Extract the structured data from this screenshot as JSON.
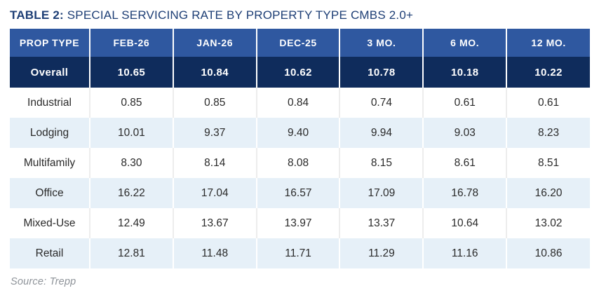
{
  "title": {
    "prefix": "TABLE 2:",
    "rest": " SPECIAL SERVICING RATE BY PROPERTY TYPE CMBS 2.0+"
  },
  "colors": {
    "title_text": "#1D3E75",
    "header_bg": "#2F58A0",
    "overall_bg": "#0F2C5C",
    "stripe_bg": "#E6F0F8",
    "source_text": "#8E9399"
  },
  "chart_data": {
    "type": "table",
    "title": "TABLE 2: SPECIAL SERVICING RATE BY PROPERTY TYPE CMBS 2.0+",
    "columns": [
      "PROP TYPE",
      "FEB-26",
      "JAN-26",
      "DEC-25",
      "3 MO.",
      "6 MO.",
      "12 MO."
    ],
    "overall": {
      "label": "Overall",
      "values": [
        "10.65",
        "10.84",
        "10.62",
        "10.78",
        "10.18",
        "10.22"
      ]
    },
    "rows": [
      {
        "label": "Industrial",
        "values": [
          "0.85",
          "0.85",
          "0.84",
          "0.74",
          "0.61",
          "0.61"
        ]
      },
      {
        "label": "Lodging",
        "values": [
          "10.01",
          "9.37",
          "9.40",
          "9.94",
          "9.03",
          "8.23"
        ]
      },
      {
        "label": "Multifamily",
        "values": [
          "8.30",
          "8.14",
          "8.08",
          "8.15",
          "8.61",
          "8.51"
        ]
      },
      {
        "label": "Office",
        "values": [
          "16.22",
          "17.04",
          "16.57",
          "17.09",
          "16.78",
          "16.20"
        ]
      },
      {
        "label": "Mixed-Use",
        "values": [
          "12.49",
          "13.67",
          "13.97",
          "13.37",
          "10.64",
          "13.02"
        ]
      },
      {
        "label": "Retail",
        "values": [
          "12.81",
          "11.48",
          "11.71",
          "11.29",
          "11.16",
          "10.86"
        ]
      }
    ],
    "source": "Source: Trepp"
  }
}
